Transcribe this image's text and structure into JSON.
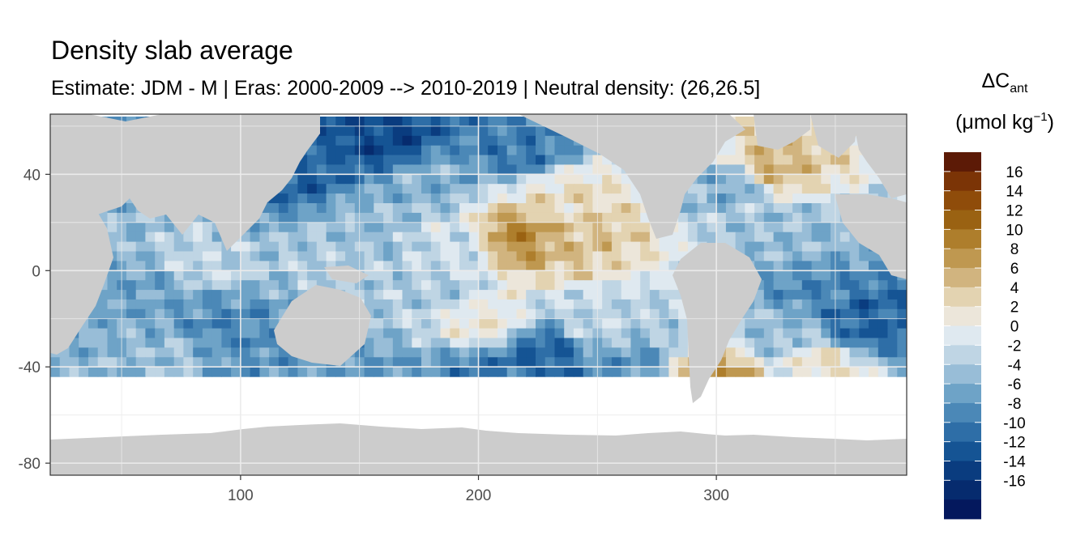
{
  "title": "Density slab average",
  "subtitle": "Estimate: JDM - M | Eras: 2000-2009 --> 2010-2019 | Neutral density: (26,26.5]",
  "legend": {
    "title_symbol": "ΔC",
    "title_subscript": "ant",
    "unit_prefix": "(μmol kg",
    "unit_superscript": "−1",
    "unit_suffix": ")",
    "ticks": [
      "16",
      "14",
      "12",
      "10",
      "8",
      "6",
      "4",
      "2",
      "0",
      "-2",
      "-4",
      "-6",
      "-8",
      "-10",
      "-12",
      "-14",
      "-16"
    ],
    "colors": [
      "#5c1a06",
      "#7b3406",
      "#8f4c0a",
      "#9a6212",
      "#ae7e2c",
      "#bf9850",
      "#d1b47f",
      "#e3d3b1",
      "#ece6da",
      "#dfe9f0",
      "#bfd5e4",
      "#98bdd7",
      "#6ea3c7",
      "#4b88b7",
      "#2e6ea7",
      "#155494",
      "#0a3c7f",
      "#062b6e",
      "#04185d"
    ]
  },
  "chart_data": {
    "type": "heatmap",
    "title": "Density slab average",
    "subtitle": "Estimate: JDM - M | Eras: 2000-2009 --> 2010-2019 | Neutral density: (26,26.5]",
    "xlabel": "",
    "ylabel": "",
    "xlim": [
      20,
      380
    ],
    "ylim": [
      -85,
      65
    ],
    "x_ticks": [
      100,
      200,
      300
    ],
    "y_ticks": [
      40,
      0,
      -40,
      -80
    ],
    "grid": true,
    "legend_placement": "right",
    "color_range": [
      -18,
      18
    ],
    "land_color": "#cccccc",
    "fields": [
      {
        "lon": 120,
        "lat": 42,
        "value": -12
      },
      {
        "lon": 160,
        "lat": 55,
        "value": -14
      },
      {
        "lon": 175,
        "lat": 40,
        "value": -6
      },
      {
        "lon": 215,
        "lat": 53,
        "value": -10
      },
      {
        "lon": 235,
        "lat": 30,
        "value": 2
      },
      {
        "lon": 215,
        "lat": 15,
        "value": 8
      },
      {
        "lon": 240,
        "lat": 15,
        "value": 4
      },
      {
        "lon": 190,
        "lat": 10,
        "value": -2
      },
      {
        "lon": 180,
        "lat": -5,
        "value": -4
      },
      {
        "lon": 150,
        "lat": 20,
        "value": -5
      },
      {
        "lon": 140,
        "lat": 5,
        "value": -4
      },
      {
        "lon": 200,
        "lat": -20,
        "value": 1
      },
      {
        "lon": 250,
        "lat": -20,
        "value": -3
      },
      {
        "lon": 200,
        "lat": -40,
        "value": -10
      },
      {
        "lon": 225,
        "lat": -33,
        "value": -12
      },
      {
        "lon": 260,
        "lat": -38,
        "value": -8
      },
      {
        "lon": 60,
        "lat": -5,
        "value": -7
      },
      {
        "lon": 80,
        "lat": 5,
        "value": -3
      },
      {
        "lon": 90,
        "lat": -22,
        "value": -9
      },
      {
        "lon": 70,
        "lat": -35,
        "value": -5
      },
      {
        "lon": 90,
        "lat": -42,
        "value": -8
      },
      {
        "lon": 140,
        "lat": -42,
        "value": -8
      },
      {
        "lon": 320,
        "lat": 45,
        "value": 5
      },
      {
        "lon": 305,
        "lat": 38,
        "value": -6
      },
      {
        "lon": 335,
        "lat": 15,
        "value": -5
      },
      {
        "lon": 340,
        "lat": -5,
        "value": -9
      },
      {
        "lon": 360,
        "lat": -20,
        "value": -12
      },
      {
        "lon": 325,
        "lat": -25,
        "value": -5
      },
      {
        "lon": 340,
        "lat": -38,
        "value": 2
      },
      {
        "lon": 300,
        "lat": -44,
        "value": 8
      },
      {
        "lon": 330,
        "lat": -44,
        "value": -2
      }
    ]
  }
}
